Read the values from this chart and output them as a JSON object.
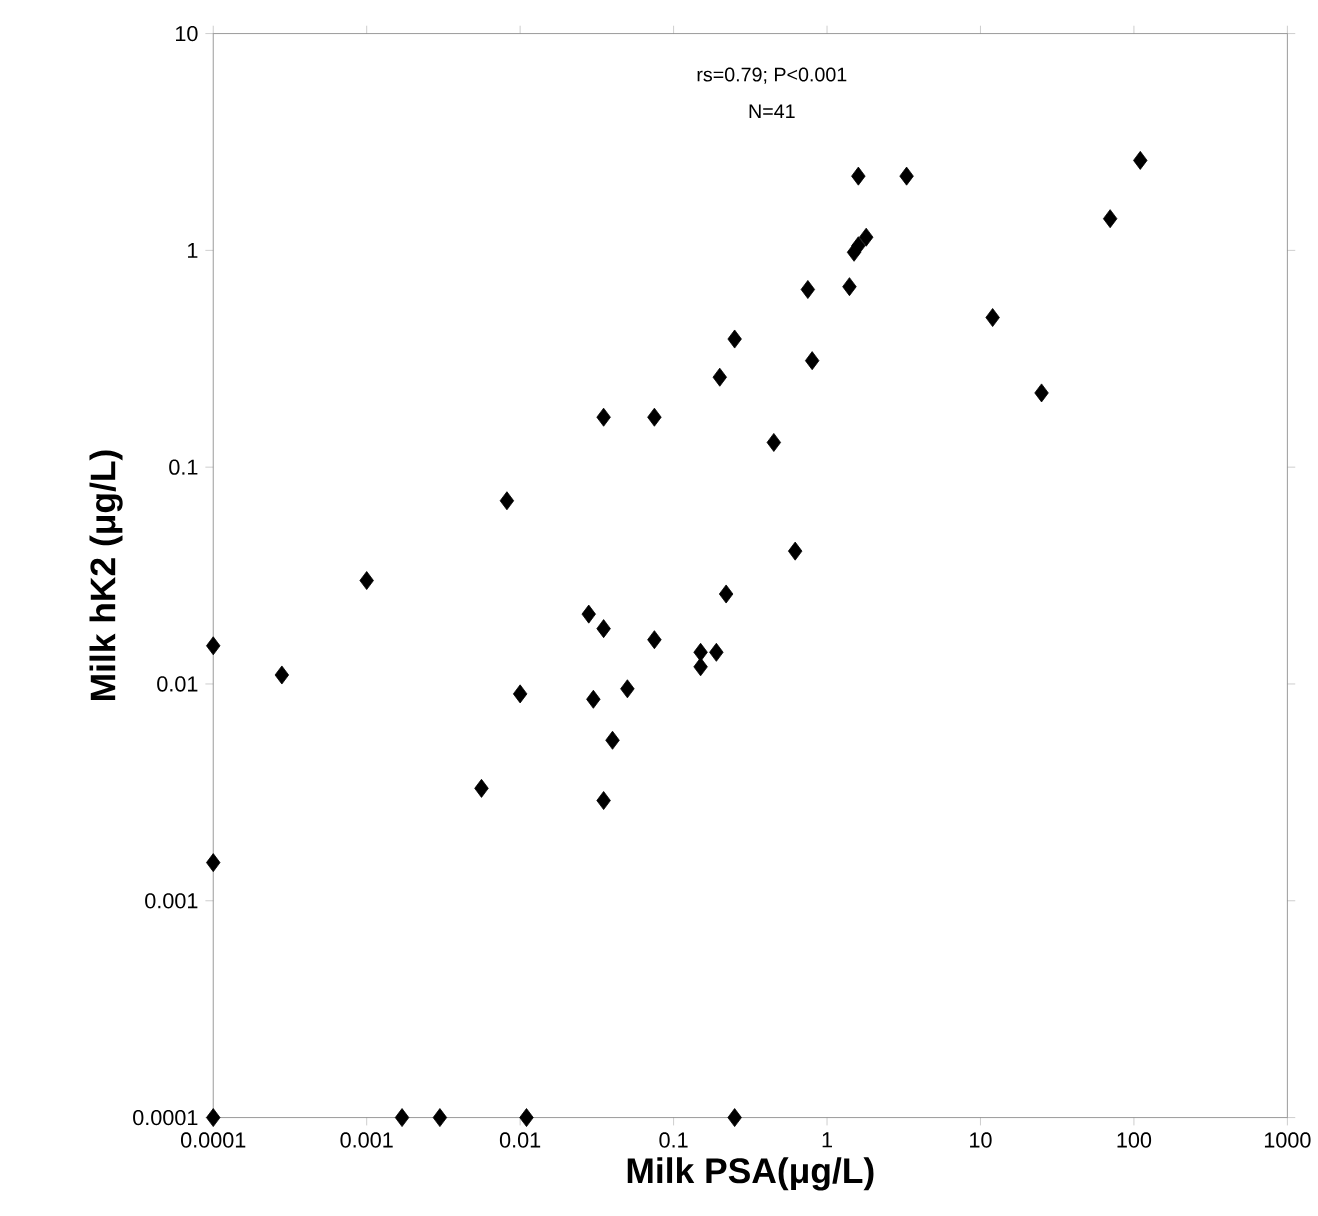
{
  "chart_data": {
    "type": "scatter",
    "xlabel": "Milk PSA(μg/L)",
    "ylabel": "Milk hK2 (μg/L)",
    "annotations": [
      "rs=0.79; P<0.001",
      "N=41"
    ],
    "log": "xy",
    "marker": "diamond",
    "xlim": [
      0.0001,
      1000
    ],
    "ylim": [
      0.0001,
      10
    ],
    "xticks": [
      0.0001,
      0.001,
      0.01,
      0.1,
      1,
      10,
      100,
      1000
    ],
    "yticks": [
      0.0001,
      0.001,
      0.01,
      0.1,
      1,
      10
    ],
    "series": [
      {
        "color": "#000000",
        "x": [
          0.0001,
          0.0001,
          0.0001,
          0.00028,
          0.001,
          0.0082,
          0.0056,
          0.01,
          0.035,
          0.075,
          0.035,
          0.04,
          0.03,
          0.028,
          0.035,
          0.05,
          0.075,
          0.15,
          0.15,
          0.19,
          0.22,
          0.2,
          0.25,
          0.45,
          0.62,
          0.75,
          0.8,
          1.4,
          1.5,
          1.6,
          1.8,
          1.6,
          3.3,
          12,
          25,
          70,
          110,
          0.0017,
          0.003,
          0.011,
          0.25
        ],
        "values": [
          0.0001,
          0.015,
          0.0015,
          0.011,
          0.03,
          0.07,
          0.0033,
          0.009,
          0.17,
          0.17,
          0.0029,
          0.0055,
          0.0085,
          0.021,
          0.018,
          0.0095,
          0.016,
          0.014,
          0.012,
          0.014,
          0.026,
          0.26,
          0.39,
          0.13,
          0.041,
          0.66,
          0.31,
          0.68,
          0.98,
          1.05,
          1.15,
          2.2,
          2.2,
          0.49,
          0.22,
          1.4,
          2.6,
          0.0001,
          0.0001,
          0.0001,
          0.0001
        ]
      }
    ]
  }
}
